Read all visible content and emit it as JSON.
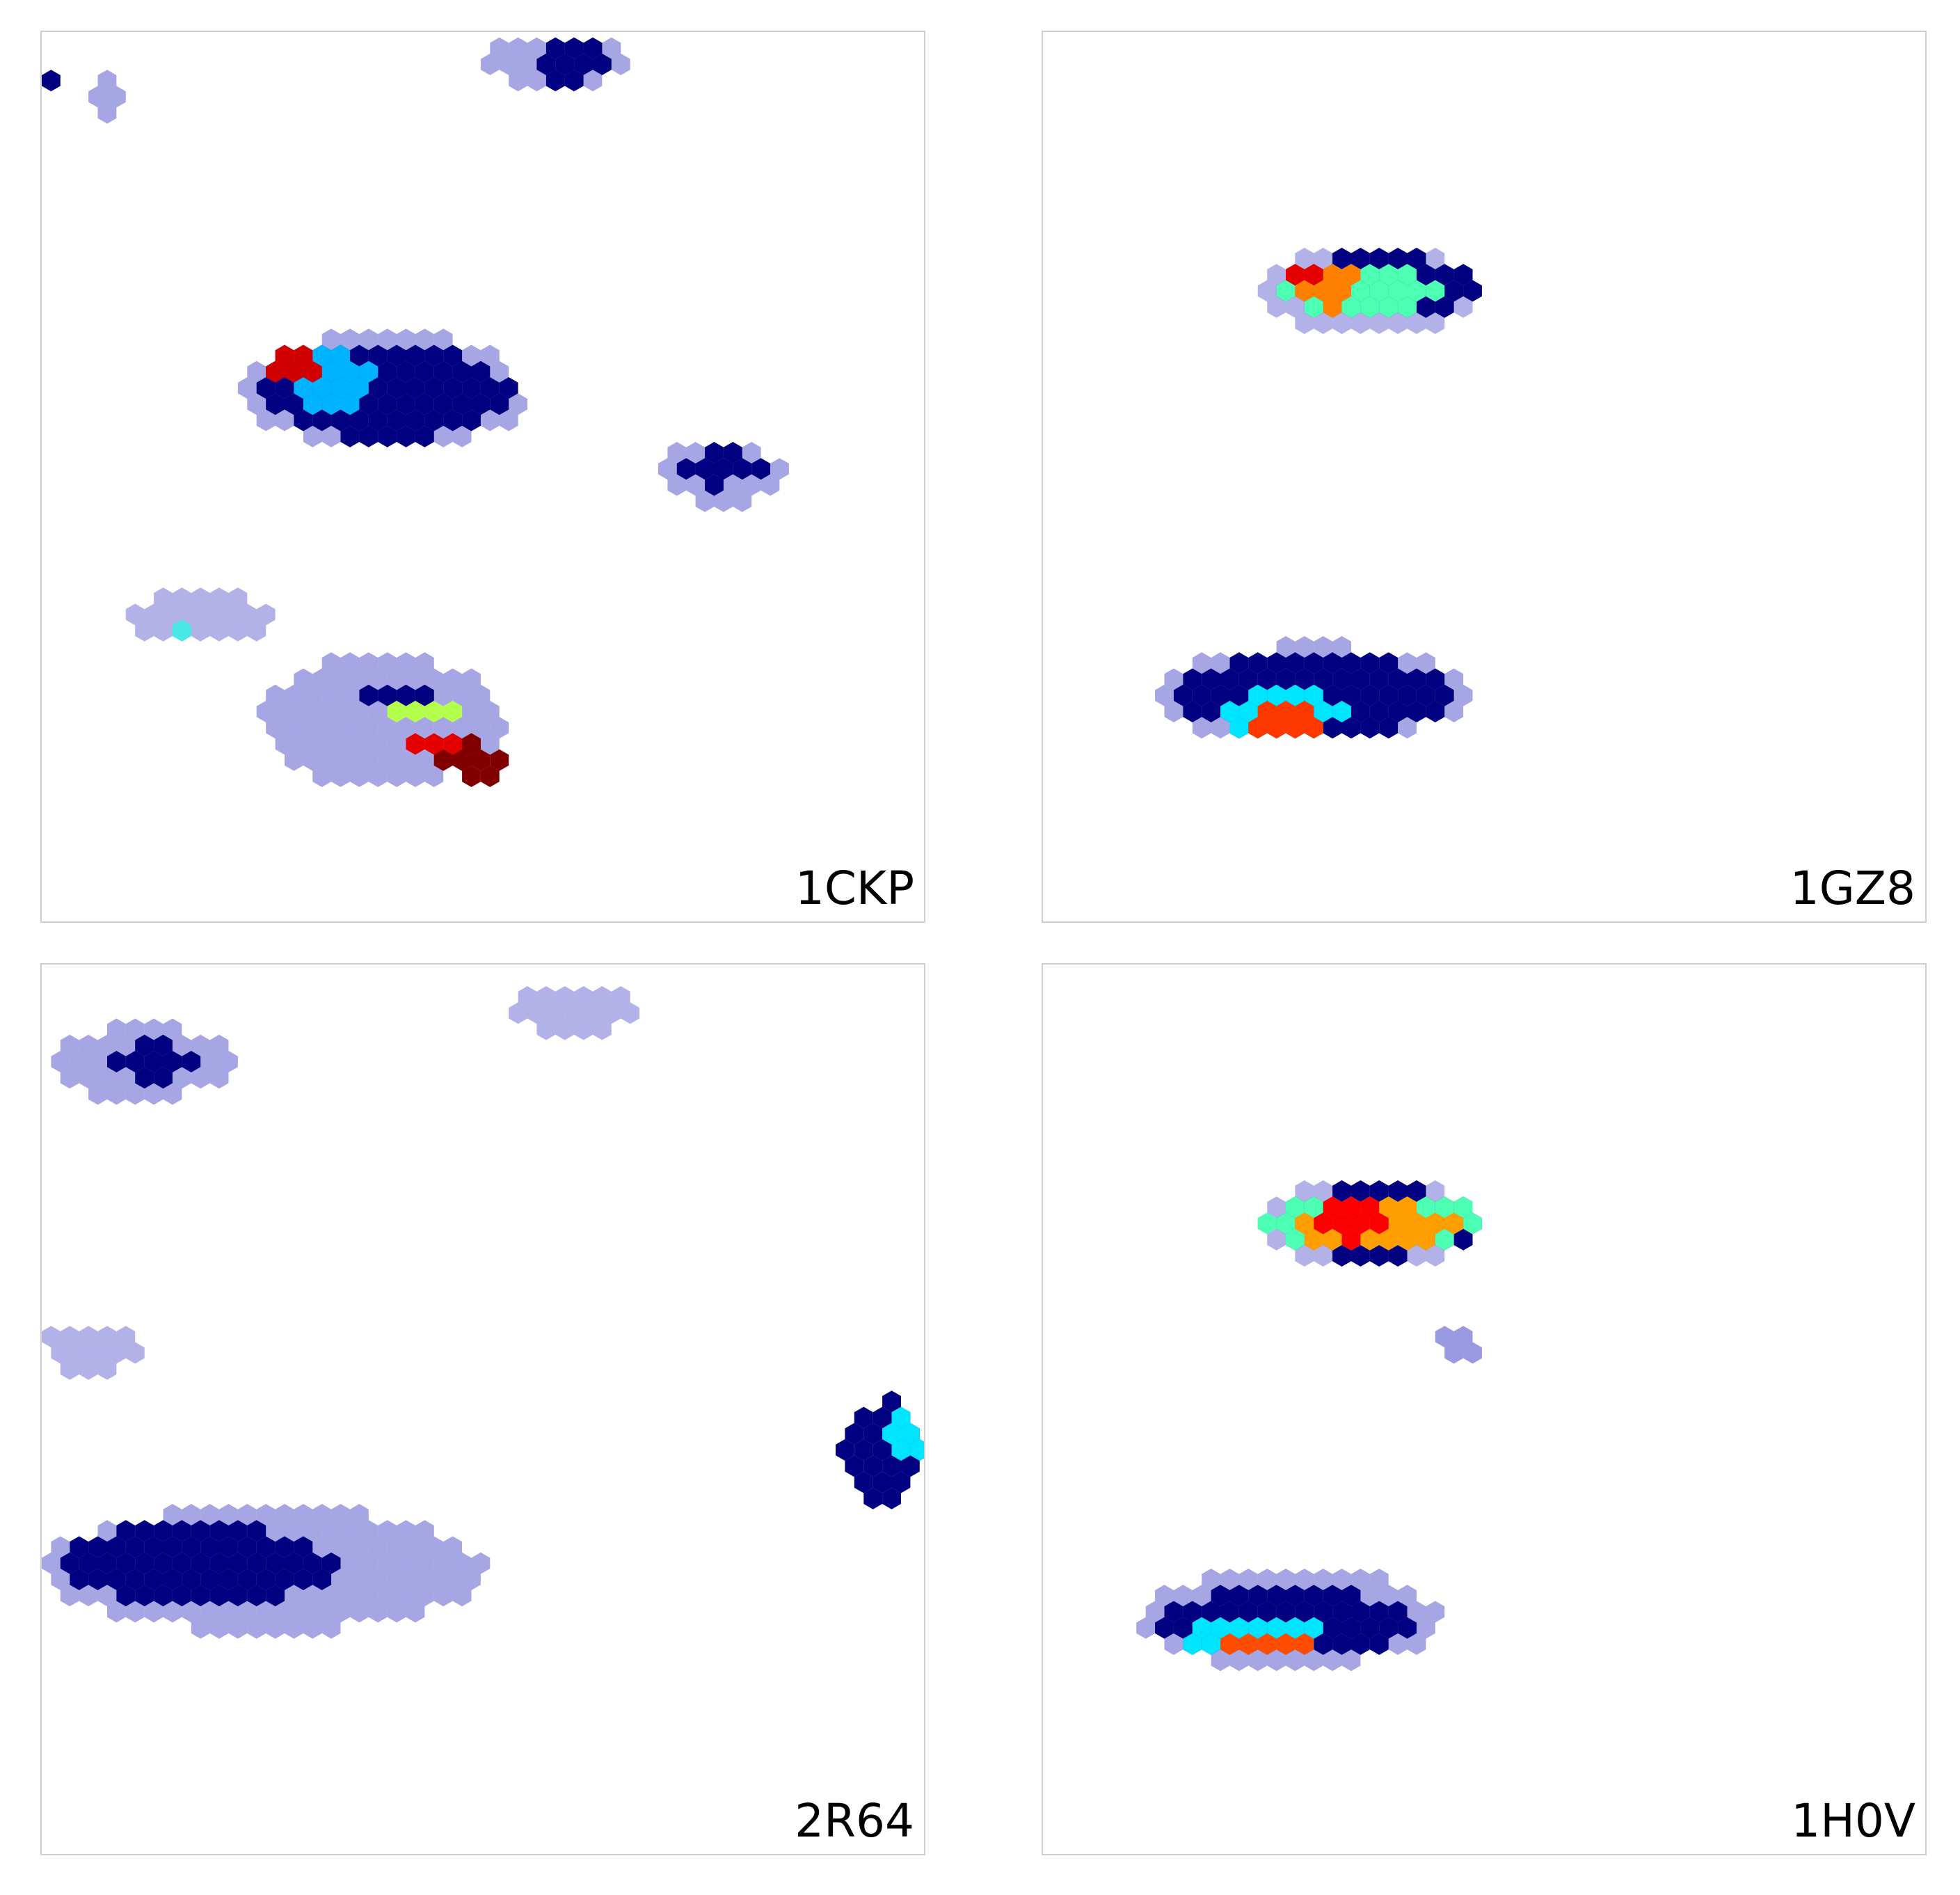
{
  "chart_data": [
    {
      "type": "heatmap",
      "label": "1CKP",
      "xlim": [
        0,
        100
      ],
      "ylim": [
        0,
        100
      ],
      "colormap": "jet",
      "blobs": [
        {
          "x": [
            0,
            2
          ],
          "y": [
            4,
            8
          ],
          "value": 0.0,
          "opacity": 1
        },
        {
          "x": [
            5,
            10
          ],
          "y": [
            5,
            10
          ],
          "value": 0.05,
          "opacity": 0.35
        },
        {
          "x": [
            50,
            66
          ],
          "y": [
            0,
            6
          ],
          "value": 0.05,
          "opacity": 0.35
        },
        {
          "x": [
            56,
            64
          ],
          "y": [
            0,
            6
          ],
          "value": 0.0,
          "opacity": 1
        },
        {
          "x": [
            23,
            55
          ],
          "y": [
            34,
            47
          ],
          "value": 0.05,
          "opacity": 0.35
        },
        {
          "x": [
            25,
            53
          ],
          "y": [
            35,
            46
          ],
          "value": 0.0,
          "opacity": 1
        },
        {
          "x": [
            28,
            38
          ],
          "y": [
            36,
            43
          ],
          "value": 0.3,
          "opacity": 1
        },
        {
          "x": [
            25,
            32
          ],
          "y": [
            36,
            40
          ],
          "value": 0.92,
          "opacity": 1
        },
        {
          "x": [
            70,
            84
          ],
          "y": [
            46,
            53
          ],
          "value": 0.05,
          "opacity": 0.35
        },
        {
          "x": [
            72,
            82
          ],
          "y": [
            47,
            51
          ],
          "value": 0.0,
          "opacity": 1
        },
        {
          "x": [
            9,
            27
          ],
          "y": [
            63,
            69
          ],
          "value": 0.05,
          "opacity": 0.3
        },
        {
          "x": [
            14,
            16
          ],
          "y": [
            66,
            68
          ],
          "value": 0.4,
          "opacity": 0.7
        },
        {
          "x": [
            25,
            52
          ],
          "y": [
            70,
            85
          ],
          "value": 0.05,
          "opacity": 0.35
        },
        {
          "x": [
            36,
            46
          ],
          "y": [
            73,
            75
          ],
          "value": 0.0,
          "opacity": 1
        },
        {
          "x": [
            38,
            48
          ],
          "y": [
            76,
            78
          ],
          "value": 0.55,
          "opacity": 1
        },
        {
          "x": [
            42,
            50
          ],
          "y": [
            79,
            82
          ],
          "value": 0.9,
          "opacity": 1
        },
        {
          "x": [
            45,
            53
          ],
          "y": [
            80,
            84
          ],
          "value": 1.0,
          "opacity": 1
        }
      ]
    },
    {
      "type": "heatmap",
      "label": "1GZ8",
      "xlim": [
        0,
        100
      ],
      "ylim": [
        0,
        100
      ],
      "colormap": "jet",
      "blobs": [
        {
          "x": [
            25,
            50
          ],
          "y": [
            24,
            34
          ],
          "value": 0.05,
          "opacity": 0.3
        },
        {
          "x": [
            26,
            50
          ],
          "y": [
            25,
            32
          ],
          "value": 0.0,
          "opacity": 1
        },
        {
          "x": [
            27,
            45
          ],
          "y": [
            26,
            32
          ],
          "value": 0.45,
          "opacity": 1
        },
        {
          "x": [
            28,
            36
          ],
          "y": [
            26,
            31
          ],
          "value": 0.75,
          "opacity": 1
        },
        {
          "x": [
            28,
            32
          ],
          "y": [
            26,
            29
          ],
          "value": 0.9,
          "opacity": 1
        },
        {
          "x": [
            13,
            48
          ],
          "y": [
            69,
            80
          ],
          "value": 0.05,
          "opacity": 0.35
        },
        {
          "x": [
            15,
            46
          ],
          "y": [
            70,
            79
          ],
          "value": 0.0,
          "opacity": 1
        },
        {
          "x": [
            20,
            34
          ],
          "y": [
            74,
            79
          ],
          "value": 0.35,
          "opacity": 1
        },
        {
          "x": [
            22,
            33
          ],
          "y": [
            76,
            79
          ],
          "value": 0.82,
          "opacity": 1
        }
      ]
    },
    {
      "type": "heatmap",
      "label": "2R64",
      "xlim": [
        0,
        100
      ],
      "ylim": [
        0,
        100
      ],
      "colormap": "jet",
      "blobs": [
        {
          "x": [
            0,
            22
          ],
          "y": [
            7,
            15
          ],
          "value": 0.05,
          "opacity": 0.35
        },
        {
          "x": [
            7,
            18
          ],
          "y": [
            9,
            13
          ],
          "value": 0.0,
          "opacity": 1
        },
        {
          "x": [
            53,
            67
          ],
          "y": [
            2,
            8
          ],
          "value": 0.05,
          "opacity": 0.3
        },
        {
          "x": [
            0,
            11
          ],
          "y": [
            40,
            46
          ],
          "value": 0.05,
          "opacity": 0.3
        },
        {
          "x": [
            91,
            100
          ],
          "y": [
            49,
            61
          ],
          "value": 0.0,
          "opacity": 1
        },
        {
          "x": [
            96,
            100
          ],
          "y": [
            50,
            56
          ],
          "value": 0.35,
          "opacity": 1
        },
        {
          "x": [
            0,
            50
          ],
          "y": [
            61,
            75
          ],
          "value": 0.05,
          "opacity": 0.35
        },
        {
          "x": [
            2,
            33
          ],
          "y": [
            63,
            72
          ],
          "value": 0.0,
          "opacity": 1
        }
      ]
    },
    {
      "type": "heatmap",
      "label": "1H0V",
      "xlim": [
        0,
        100
      ],
      "ylim": [
        0,
        100
      ],
      "colormap": "jet",
      "blobs": [
        {
          "x": [
            25,
            50
          ],
          "y": [
            24,
            34
          ],
          "value": 0.05,
          "opacity": 0.3
        },
        {
          "x": [
            26,
            50
          ],
          "y": [
            25,
            33
          ],
          "value": 0.0,
          "opacity": 1
        },
        {
          "x": [
            25,
            50
          ],
          "y": [
            26,
            32
          ],
          "value": 0.45,
          "opacity": 1
        },
        {
          "x": [
            29,
            47
          ],
          "y": [
            27,
            32
          ],
          "value": 0.72,
          "opacity": 1
        },
        {
          "x": [
            30,
            40
          ],
          "y": [
            27,
            31
          ],
          "value": 0.88,
          "opacity": 1
        },
        {
          "x": [
            45,
            50
          ],
          "y": [
            41,
            45
          ],
          "value": 0.05,
          "opacity": 0.4
        },
        {
          "x": [
            11,
            45
          ],
          "y": [
            68,
            79
          ],
          "value": 0.05,
          "opacity": 0.35
        },
        {
          "x": [
            13,
            42
          ],
          "y": [
            70,
            78
          ],
          "value": 0.0,
          "opacity": 1
        },
        {
          "x": [
            16,
            32
          ],
          "y": [
            73,
            78
          ],
          "value": 0.35,
          "opacity": 1
        },
        {
          "x": [
            20,
            30
          ],
          "y": [
            75,
            78
          ],
          "value": 0.8,
          "opacity": 1
        }
      ]
    }
  ]
}
